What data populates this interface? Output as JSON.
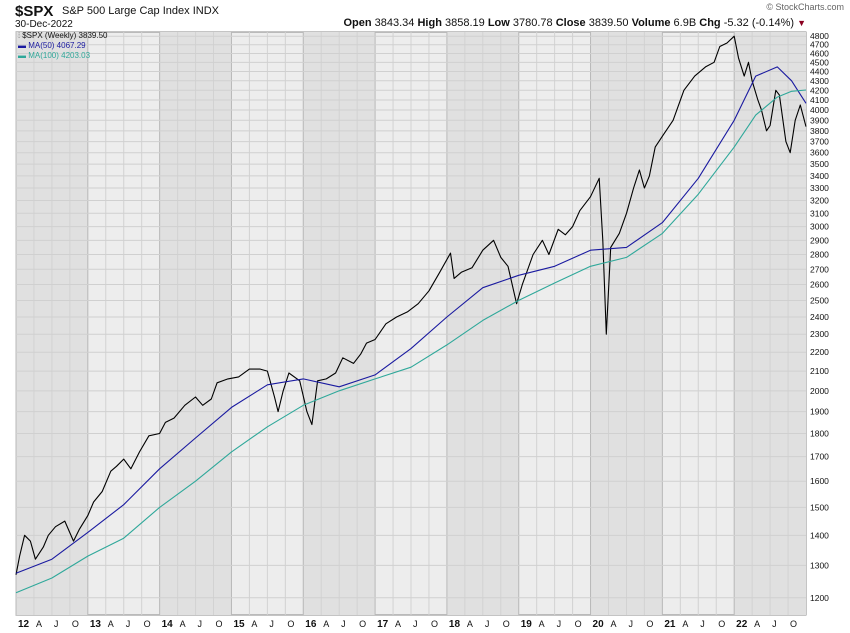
{
  "header": {
    "symbol": "$SPX",
    "name": "S&P 500 Large Cap Index",
    "exchange": "INDX",
    "date": "30-Dec-2022",
    "brand": "© StockCharts.com",
    "open_label": "Open",
    "open": "3843.34",
    "high_label": "High",
    "high": "3858.19",
    "low_label": "Low",
    "low": "3780.78",
    "close_label": "Close",
    "close": "3839.50",
    "volume_label": "Volume",
    "volume": "6.9B",
    "chg_label": "Chg",
    "chg": "-5.32 (-0.14%)"
  },
  "legend": {
    "price": "$SPX (Weekly) 3839.50",
    "ma50": "MA(50) 4067.29",
    "ma100": "MA(100) 4203.03"
  },
  "colors": {
    "price": "#000000",
    "ma50": "#1a1aa0",
    "ma100": "#2fa89a",
    "down_arrow": "#8b0020",
    "plot_bg": "#ededed",
    "year_shade": "#e0e0e0"
  },
  "chart_data": {
    "type": "line",
    "title": "$SPX S&P 500 Large Cap Index",
    "x_tick_labels": [
      "12",
      "A",
      "J",
      "O",
      "13",
      "A",
      "J",
      "O",
      "14",
      "A",
      "J",
      "O",
      "15",
      "A",
      "J",
      "O",
      "16",
      "A",
      "J",
      "O",
      "17",
      "A",
      "J",
      "O",
      "18",
      "A",
      "J",
      "O",
      "19",
      "A",
      "J",
      "O",
      "20",
      "A",
      "J",
      "O",
      "21",
      "A",
      "J",
      "O",
      "22",
      "A",
      "J",
      "O"
    ],
    "y_tick_labels": [
      1200,
      1300,
      1400,
      1500,
      1600,
      1700,
      1800,
      1900,
      2000,
      2100,
      2200,
      2300,
      2400,
      2500,
      2600,
      2700,
      2800,
      2900,
      3000,
      3100,
      3200,
      3300,
      3400,
      3500,
      3600,
      3700,
      3800,
      3900,
      4000,
      4100,
      4200,
      4300,
      4400,
      4500,
      4600,
      4700,
      4800
    ],
    "y_scale": "log",
    "ylim": [
      1150,
      4850
    ],
    "xlim": [
      2012.0,
      2023.0
    ],
    "grid": true,
    "series": [
      {
        "name": "$SPX (Weekly)",
        "x": [
          2012.0,
          2012.05,
          2012.12,
          2012.2,
          2012.27,
          2012.38,
          2012.45,
          2012.55,
          2012.68,
          2012.8,
          2012.88,
          2013.0,
          2013.08,
          2013.2,
          2013.32,
          2013.4,
          2013.5,
          2013.6,
          2013.72,
          2013.85,
          2014.0,
          2014.08,
          2014.2,
          2014.35,
          2014.5,
          2014.6,
          2014.72,
          2014.8,
          2014.95,
          2015.1,
          2015.25,
          2015.4,
          2015.5,
          2015.6,
          2015.65,
          2015.72,
          2015.8,
          2015.95,
          2016.05,
          2016.12,
          2016.2,
          2016.32,
          2016.45,
          2016.55,
          2016.7,
          2016.8,
          2016.88,
          2017.0,
          2017.15,
          2017.3,
          2017.45,
          2017.6,
          2017.75,
          2017.9,
          2018.05,
          2018.1,
          2018.2,
          2018.35,
          2018.5,
          2018.65,
          2018.75,
          2018.85,
          2018.97,
          2019.05,
          2019.2,
          2019.33,
          2019.42,
          2019.55,
          2019.65,
          2019.75,
          2019.85,
          2020.0,
          2020.12,
          2020.17,
          2020.22,
          2020.28,
          2020.4,
          2020.5,
          2020.6,
          2020.68,
          2020.75,
          2020.82,
          2020.9,
          2021.0,
          2021.15,
          2021.3,
          2021.45,
          2021.6,
          2021.72,
          2021.8,
          2021.9,
          2022.0,
          2022.06,
          2022.14,
          2022.2,
          2022.25,
          2022.33,
          2022.38,
          2022.45,
          2022.5,
          2022.58,
          2022.63,
          2022.72,
          2022.78,
          2022.85,
          2022.92,
          2023.0
        ],
        "values": [
          1270,
          1330,
          1400,
          1380,
          1320,
          1360,
          1400,
          1430,
          1450,
          1380,
          1420,
          1470,
          1520,
          1560,
          1640,
          1660,
          1690,
          1650,
          1720,
          1790,
          1800,
          1850,
          1870,
          1930,
          1970,
          1930,
          1960,
          2040,
          2060,
          2070,
          2110,
          2110,
          2100,
          1970,
          1900,
          2000,
          2090,
          2050,
          1900,
          1840,
          2050,
          2060,
          2090,
          2170,
          2140,
          2190,
          2250,
          2270,
          2360,
          2400,
          2430,
          2480,
          2560,
          2680,
          2810,
          2640,
          2680,
          2710,
          2830,
          2900,
          2780,
          2720,
          2480,
          2600,
          2800,
          2900,
          2800,
          2980,
          2940,
          3000,
          3120,
          3230,
          3380,
          2900,
          2300,
          2850,
          2950,
          3100,
          3300,
          3450,
          3300,
          3400,
          3650,
          3750,
          3900,
          4200,
          4350,
          4450,
          4500,
          4680,
          4720,
          4800,
          4550,
          4350,
          4500,
          4300,
          4100,
          4000,
          3800,
          3850,
          4200,
          4150,
          3700,
          3600,
          3900,
          4050,
          3840
        ]
      },
      {
        "name": "MA(50)",
        "x": [
          2012.0,
          2012.5,
          2013.0,
          2013.5,
          2014.0,
          2014.5,
          2015.0,
          2015.5,
          2016.0,
          2016.5,
          2017.0,
          2017.5,
          2018.0,
          2018.5,
          2019.0,
          2019.5,
          2020.0,
          2020.5,
          2021.0,
          2021.5,
          2022.0,
          2022.3,
          2022.6,
          2022.8,
          2023.0
        ],
        "values": [
          1275,
          1320,
          1410,
          1510,
          1650,
          1780,
          1920,
          2030,
          2060,
          2020,
          2080,
          2220,
          2400,
          2580,
          2660,
          2720,
          2830,
          2850,
          3030,
          3380,
          3900,
          4350,
          4450,
          4300,
          4067
        ]
      },
      {
        "name": "MA(100)",
        "x": [
          2012.0,
          2012.5,
          2013.0,
          2013.5,
          2014.0,
          2014.5,
          2015.0,
          2015.5,
          2016.0,
          2016.5,
          2017.0,
          2017.5,
          2018.0,
          2018.5,
          2019.0,
          2019.5,
          2020.0,
          2020.5,
          2021.0,
          2021.5,
          2022.0,
          2022.3,
          2022.6,
          2022.8,
          2023.0
        ],
        "values": [
          1215,
          1260,
          1330,
          1390,
          1500,
          1600,
          1720,
          1830,
          1930,
          2000,
          2060,
          2120,
          2240,
          2380,
          2500,
          2610,
          2720,
          2780,
          2950,
          3250,
          3650,
          3950,
          4130,
          4190,
          4203
        ]
      }
    ]
  }
}
